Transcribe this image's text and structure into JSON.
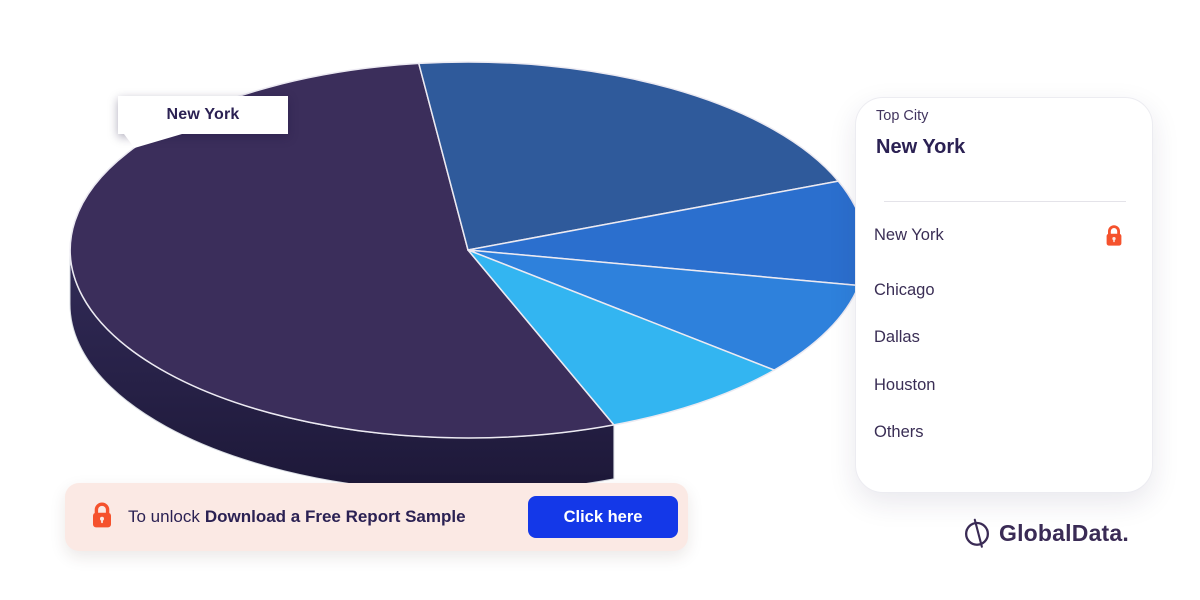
{
  "chart_data": {
    "type": "pie",
    "style_3d": true,
    "title": "",
    "labels": [
      "New York",
      "Chicago",
      "Dallas",
      "Houston",
      "Others"
    ],
    "values_pct": [
      54,
      21,
      9,
      8,
      8
    ],
    "values_are_estimates": true,
    "start_angle_deg": 158.5,
    "colors": [
      "#3B2E5B",
      "#2F5A9B",
      "#2B6FCE",
      "#2E81DC",
      "#33B5F1"
    ],
    "side_colors": [
      "gradient",
      "#1B3C6B",
      "#114E73",
      "#165F80",
      "#1D6077"
    ],
    "legend_position": "right",
    "highlighted_slice": "New York"
  },
  "pie_label_callout": "New York",
  "panel": {
    "kicker": "Top City",
    "headline": "New York",
    "items": [
      {
        "label": "New York",
        "locked": true
      },
      {
        "label": "Chicago",
        "locked": false
      },
      {
        "label": "Dallas",
        "locked": false
      },
      {
        "label": "Houston",
        "locked": false
      },
      {
        "label": "Others",
        "locked": false
      }
    ]
  },
  "banner": {
    "prefix": "To unlock",
    "message": "Download a Free Report Sample",
    "button_label": "Click here"
  },
  "logo": {
    "text": "GlobalData."
  },
  "colors": {
    "accent_orange": "#F5522D",
    "button_blue": "#1438E8",
    "text_dark": "#2B2153",
    "banner_bg": "#FBE9E4"
  }
}
